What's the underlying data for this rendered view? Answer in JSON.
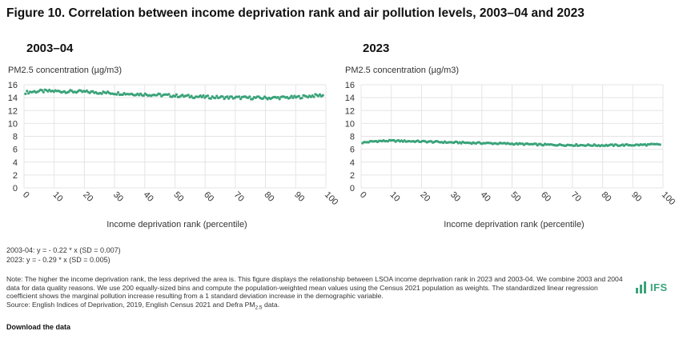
{
  "header": {
    "title": "Figure 10. Correlation between income deprivation rank and air pollution levels, 2003–04 and 2023"
  },
  "chart_data": [
    {
      "type": "scatter",
      "title": "2003–04",
      "ylabel": "PM2.5 concentration (µg/m3)",
      "xlabel": "Income deprivation rank (percentile)",
      "xlim": [
        0,
        100
      ],
      "ylim": [
        0,
        16
      ],
      "xticks": [
        "0",
        "10",
        "20",
        "30",
        "40",
        "50",
        "60",
        "70",
        "80",
        "90",
        "100"
      ],
      "yticks": [
        "0",
        "2",
        "4",
        "6",
        "8",
        "10",
        "12",
        "14",
        "16"
      ],
      "grid": true,
      "color": "#3aa37a",
      "trend": {
        "x": [
          0,
          5,
          10,
          20,
          30,
          40,
          50,
          60,
          70,
          80,
          90,
          96,
          100
        ],
        "y": [
          14.8,
          15.0,
          15.0,
          14.9,
          14.7,
          14.5,
          14.3,
          14.1,
          14.0,
          13.95,
          14.05,
          14.3,
          14.4
        ]
      }
    },
    {
      "type": "scatter",
      "title": "2023",
      "ylabel": "PM2.5 concentration (µg/m3)",
      "xlabel": "Income deprivation rank (percentile)",
      "xlim": [
        0,
        100
      ],
      "ylim": [
        0,
        16
      ],
      "xticks": [
        "0",
        "10",
        "20",
        "30",
        "40",
        "50",
        "60",
        "70",
        "80",
        "90",
        "100"
      ],
      "yticks": [
        "0",
        "2",
        "4",
        "6",
        "8",
        "10",
        "12",
        "14",
        "16"
      ],
      "grid": true,
      "color": "#3aa37a",
      "trend": {
        "x": [
          0,
          5,
          10,
          20,
          30,
          40,
          50,
          60,
          70,
          80,
          90,
          100
        ],
        "y": [
          7.0,
          7.25,
          7.3,
          7.2,
          7.05,
          6.95,
          6.85,
          6.7,
          6.65,
          6.6,
          6.65,
          6.75
        ]
      }
    }
  ],
  "equations": {
    "line1": "2003-04: y = - 0.22 * x (SD = 0.007)",
    "line2": "2023: y = - 0.29 * x (SD = 0.005)"
  },
  "note": {
    "text": "Note: The higher the income deprivation rank, the less deprived the area is. This figure displays the relationship between LSOA income deprivation rank in 2023 and 2003-04. We combine 2003 and 2004 data for data quality reasons. We use 200 equally-sized bins and compute the population-weighted mean values using the Census 2021 population as weights. The standardized linear regression coefficient shows the marginal pollution increase resulting from a 1 standard deviation increase in the demographic variable.",
    "source_prefix": "Source: English Indices of Deprivation, 2019, English Census 2021 and Defra PM",
    "source_sub": "2.5",
    "source_suffix": " data."
  },
  "download_label": "Download the data",
  "logo_text": "IFS"
}
